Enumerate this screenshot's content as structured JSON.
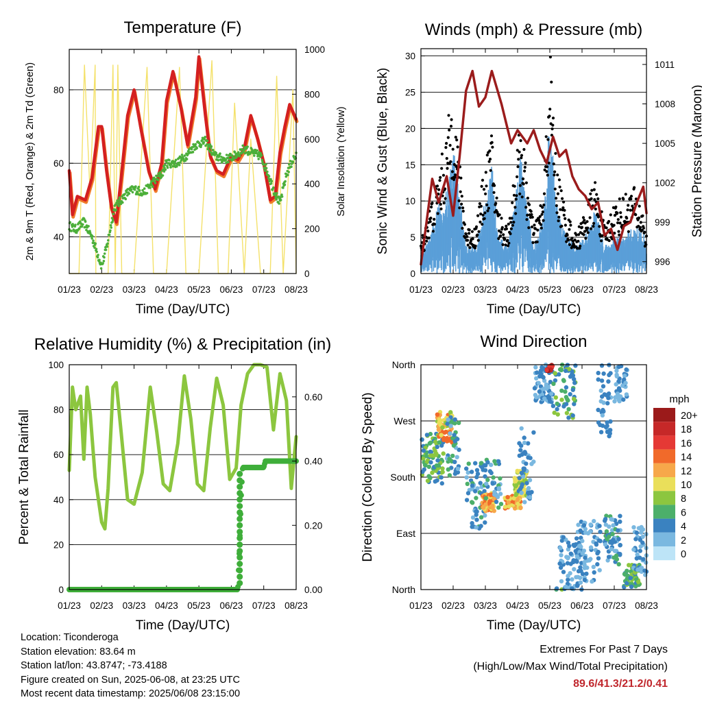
{
  "x_tick_labels": [
    "01/23",
    "02/23",
    "03/23",
    "04/23",
    "05/23",
    "06/23",
    "07/23",
    "08/23"
  ],
  "info": {
    "location": "Location: Ticonderoga",
    "elevation": "Station elevation: 83.64 m",
    "latlon": "Station lat/lon: 43.8747; -73.4188",
    "created": "Figure created on Sun, 2025-06-08, at 23:25 UTC",
    "recent": "Most recent data timestamp: 2025/06/08 23:15:00"
  },
  "extremes": {
    "title": "Extremes For Past 7 Days",
    "subtitle": "(High/Low/Max Wind/Total Precipitation)",
    "values": "89.6/41.3/21.2/0.41"
  },
  "colors": {
    "temp_2m": "#d42020",
    "temp_9m": "#f07a2a",
    "dewpoint": "#4caf3a",
    "insolation": "#f4e16a",
    "gust": "#000000",
    "wind": "#5a9fd8",
    "pressure": "#9b1c1c",
    "rh": "#8cc63f",
    "precip": "#3fae3a"
  },
  "chart_data": [
    {
      "type": "line",
      "title": "Temperature (F)",
      "xlabel": "Time (Day/UTC)",
      "ylabel": "2m & 9m T (Red, Orange) & 2m Td (Green)",
      "y2label": "Solar Insolation (Yellow)",
      "x_range": [
        0,
        7
      ],
      "ylim": [
        30,
        91
      ],
      "y_ticks": [
        40,
        60,
        80
      ],
      "y2lim": [
        0,
        1000
      ],
      "y2_ticks": [
        0,
        200,
        400,
        600,
        800,
        1000
      ],
      "series": [
        {
          "key": "temp",
          "x": [
            0,
            0.1,
            0.25,
            0.5,
            0.7,
            0.9,
            1.0,
            1.15,
            1.3,
            1.45,
            1.6,
            1.8,
            2.0,
            2.2,
            2.45,
            2.65,
            2.85,
            3.0,
            3.2,
            3.45,
            3.65,
            3.9,
            4.0,
            4.2,
            4.35,
            4.55,
            4.75,
            5.0,
            5.2,
            5.4,
            5.6,
            5.8,
            6.0,
            6.2,
            6.35,
            6.5,
            6.65,
            6.8,
            6.95,
            7.0
          ],
          "y": [
            58,
            46,
            51,
            50,
            56,
            70,
            70,
            58,
            48,
            44,
            56,
            73,
            80,
            70,
            58,
            53,
            60,
            77,
            85,
            75,
            65,
            78,
            89,
            73,
            62,
            58,
            57,
            62,
            61,
            64,
            73,
            67,
            60,
            50,
            51,
            63,
            70,
            76,
            73,
            72
          ]
        },
        {
          "key": "dew",
          "x": [
            0,
            0.2,
            0.45,
            0.7,
            0.85,
            1.0,
            1.15,
            1.4,
            1.6,
            1.8,
            2.0,
            2.3,
            2.6,
            2.85,
            3.0,
            3.3,
            3.6,
            3.9,
            4.2,
            4.5,
            4.8,
            5.1,
            5.4,
            5.6,
            5.9,
            6.1,
            6.3,
            6.5,
            6.7,
            6.9,
            7.0
          ],
          "y": [
            43,
            42,
            44,
            40,
            36,
            32,
            37,
            48,
            50,
            52,
            53,
            52,
            55,
            57,
            60,
            60,
            62,
            65,
            66,
            62,
            61,
            62,
            64,
            63,
            62,
            58,
            53,
            49,
            57,
            61,
            62
          ]
        },
        {
          "key": "ins",
          "x": [
            0,
            0.3,
            0.47,
            0.64,
            0.8,
            0.82,
            1.0,
            1.2,
            1.35,
            1.42,
            1.5,
            1.62,
            1.75,
            2.0,
            2.4,
            2.6,
            3.0,
            3.4,
            3.6,
            4.0,
            4.4,
            4.6,
            4.9,
            5.1,
            5.4,
            5.6,
            5.9,
            6.2,
            6.4,
            6.6,
            6.9,
            7.0
          ],
          "y": [
            0,
            0,
            930,
            360,
            930,
            0,
            0,
            0,
            930,
            0,
            930,
            0,
            0,
            0,
            920,
            0,
            0,
            920,
            0,
            0,
            950,
            0,
            0,
            760,
            0,
            600,
            0,
            0,
            880,
            0,
            820,
            0
          ]
        }
      ]
    },
    {
      "type": "line",
      "title": "Winds (mph) & Pressure (mb)",
      "xlabel": "Time (Day/UTC)",
      "ylabel": "Sonic Wind & Gust (Blue, Black)",
      "y2label": "Station Pressure (Maroon)",
      "x_range": [
        0,
        7
      ],
      "ylim": [
        0,
        31
      ],
      "y_ticks": [
        0,
        5,
        10,
        15,
        20,
        25,
        30
      ],
      "y2lim": [
        995.1,
        1012.2
      ],
      "y2_ticks": [
        996,
        999,
        1002,
        1005,
        1008,
        1011
      ],
      "series": [
        {
          "key": "press",
          "x": [
            0,
            0.2,
            0.35,
            0.55,
            0.8,
            0.9,
            1.0,
            1.2,
            1.4,
            1.6,
            1.8,
            2.0,
            2.2,
            2.5,
            2.8,
            3.0,
            3.3,
            3.5,
            3.7,
            3.9,
            4.1,
            4.3,
            4.5,
            4.7,
            4.9,
            5.1,
            5.3,
            5.5,
            5.7,
            5.9,
            6.1,
            6.3,
            6.5,
            6.7,
            6.9,
            7.0
          ],
          "y": [
            995.8,
            999.5,
            1002.3,
            1000.5,
            1002.5,
            1001,
            999.5,
            1004,
            1009,
            1010.5,
            1007.8,
            1008.5,
            1010.5,
            1008,
            1005,
            1006,
            1005,
            1006,
            1004.5,
            1003.5,
            1005.5,
            1004,
            1004.5,
            1002.5,
            1001.5,
            1001,
            1000,
            1000.5,
            998,
            998.5,
            996.9,
            998.7,
            999,
            1000.5,
            1001.7,
            999.7
          ]
        },
        {
          "key": "wind",
          "x": [
            0,
            0.3,
            0.5,
            0.8,
            1.0,
            1.2,
            1.4,
            1.7,
            2.0,
            2.2,
            2.4,
            2.7,
            3.0,
            3.1,
            3.3,
            3.5,
            3.8,
            4.0,
            4.2,
            4.5,
            4.8,
            5.1,
            5.4,
            5.7,
            6.0,
            6.3,
            6.6,
            6.9,
            7.0
          ],
          "y": [
            2,
            4,
            7,
            9,
            14,
            9,
            3,
            3,
            8,
            12,
            4,
            3,
            10,
            14,
            7,
            3,
            6,
            17,
            8,
            4,
            3,
            4,
            7,
            3,
            4,
            4,
            5,
            5,
            3
          ]
        },
        {
          "key": "gust",
          "x": [
            0,
            0.3,
            0.5,
            0.8,
            1.0,
            1.2,
            1.4,
            1.7,
            2.0,
            2.2,
            2.4,
            2.7,
            3.0,
            3.1,
            3.3,
            3.5,
            3.8,
            4.0,
            4.2,
            4.5,
            4.8,
            5.1,
            5.4,
            5.7,
            6.0,
            6.3,
            6.6,
            6.9,
            7.0
          ],
          "y": [
            4,
            9,
            12,
            18,
            24,
            14,
            6,
            6,
            14,
            18,
            8,
            6,
            16,
            20,
            12,
            6,
            10,
            29,
            14,
            8,
            5,
            8,
            12,
            6,
            9,
            10,
            11,
            8,
            5
          ]
        }
      ]
    },
    {
      "type": "line",
      "title": "Relative Humidity (%) & Precipitation (in)",
      "xlabel": "Time (Day/UTC)",
      "ylabel": "Percent & Total Rainfall",
      "x_range": [
        0,
        7
      ],
      "ylim": [
        0,
        100
      ],
      "y_ticks": [
        0,
        20,
        40,
        60,
        80,
        100
      ],
      "y2lim": [
        0,
        0.7
      ],
      "y2_ticks": [
        "0.00",
        "0.20",
        "0.40",
        "0.60"
      ],
      "series": [
        {
          "key": "rh",
          "x": [
            0,
            0.1,
            0.2,
            0.35,
            0.45,
            0.55,
            0.65,
            0.8,
            1.0,
            1.1,
            1.2,
            1.35,
            1.45,
            1.6,
            1.8,
            2.0,
            2.25,
            2.5,
            2.7,
            2.9,
            3.1,
            3.35,
            3.55,
            3.75,
            3.95,
            4.15,
            4.35,
            4.55,
            4.75,
            4.95,
            5.15,
            5.3,
            5.5,
            5.7,
            5.9,
            6.1,
            6.3,
            6.5,
            6.7,
            6.85,
            7.0
          ],
          "y": [
            53,
            90,
            80,
            86,
            58,
            90,
            78,
            50,
            30,
            27,
            45,
            90,
            92,
            70,
            40,
            38,
            52,
            90,
            70,
            47,
            44,
            65,
            95,
            76,
            47,
            44,
            72,
            94,
            82,
            49,
            54,
            82,
            96,
            100,
            100,
            99,
            71,
            96,
            84,
            45,
            68
          ]
        },
        {
          "key": "precip",
          "x": [
            0,
            5.2,
            5.22,
            5.26,
            5.3,
            5.35,
            5.45,
            6.0,
            6.05,
            7.0
          ],
          "y": [
            0,
            0,
            0.05,
            0.15,
            0.28,
            0.38,
            0.38,
            0.38,
            0.4,
            0.4
          ]
        }
      ]
    },
    {
      "type": "scatter",
      "title": "Wind Direction",
      "xlabel": "Time (Day/UTC)",
      "ylabel": "Direction (Colored By Speed)",
      "x_range": [
        0,
        7
      ],
      "ylim": [
        0,
        360
      ],
      "y_tick_labels": [
        "North",
        "East",
        "South",
        "West",
        "North"
      ],
      "legend": {
        "title": "mph",
        "labels": [
          "20+",
          "18",
          "16",
          "14",
          "12",
          "10",
          "8",
          "6",
          "4",
          "2",
          "0"
        ],
        "colors": [
          "#9b1a1a",
          "#c62828",
          "#e53935",
          "#f16a2a",
          "#f7a84a",
          "#eadf5a",
          "#8cc63f",
          "#4caf6a",
          "#3a82c0",
          "#7ab8e0",
          "#bde4f7"
        ]
      }
    }
  ]
}
